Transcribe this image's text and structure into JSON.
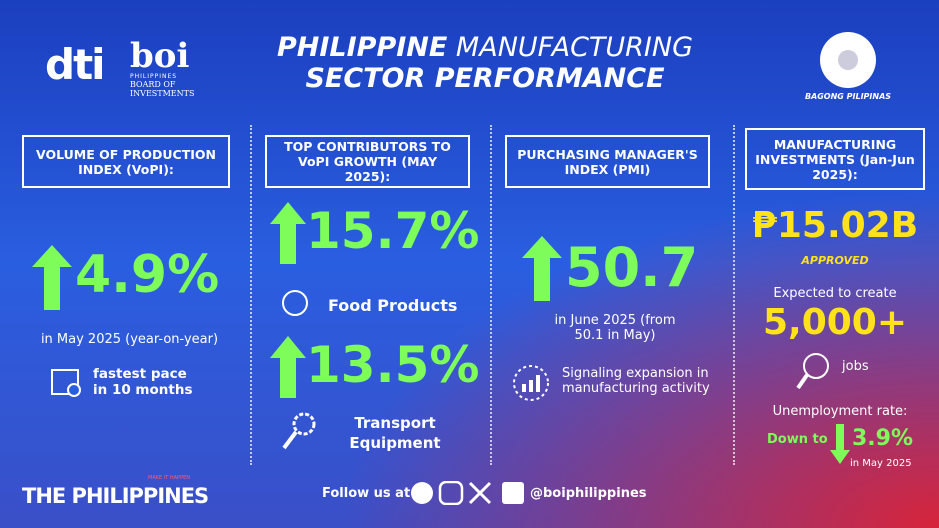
{
  "header": {
    "logo_dti": "dti",
    "logo_boi": "boi",
    "boi_line1": "PHILIPPINES",
    "boi_line2": "BOARD OF",
    "boi_line3": "INVESTMENTS",
    "title_line1_bold": "PHILIPPINE",
    "title_line1_rest": "MANUFACTURING",
    "title_line2": "SECTOR PERFORMANCE",
    "badge": "BAGONG PILIPINAS"
  },
  "panels": [
    {
      "heading": "VOLUME OF PRODUCTION INDEX (VoPI):",
      "value": "4.9%",
      "note": "in May 2025 (year-on-year)",
      "highlight": "fastest pace in 10 months"
    },
    {
      "heading": "TOP CONTRIBUTORS TO VoPI GROWTH (MAY 2025):",
      "items": [
        {
          "value": "15.7%",
          "label": "Food Products"
        },
        {
          "value": "13.5%",
          "label": "Transport Equipment"
        }
      ]
    },
    {
      "heading": "PURCHASING MANAGER'S INDEX (PMI)",
      "value": "50.7",
      "note": "in June 2025 (from 50.1 in May)",
      "highlight": "Signaling expansion in manufacturing activity"
    },
    {
      "heading": "MANUFACTURING INVESTMENTS (Jan-Jun 2025):",
      "value": "₱15.02B",
      "status": "APPROVED",
      "expect": "Expected to create",
      "jobs_value": "5,000+",
      "jobs_label": "jobs",
      "unemp_label": "Unemployment rate:",
      "down_to": "Down to",
      "unemp_value": "3.9%",
      "unemp_note": "in May 2025"
    }
  ],
  "footer": {
    "brand": "THE PHILIPPINES",
    "tagline": "MAKE IT HAPPEN",
    "follow": "Follow us at",
    "handle": "@boiphilippines"
  }
}
